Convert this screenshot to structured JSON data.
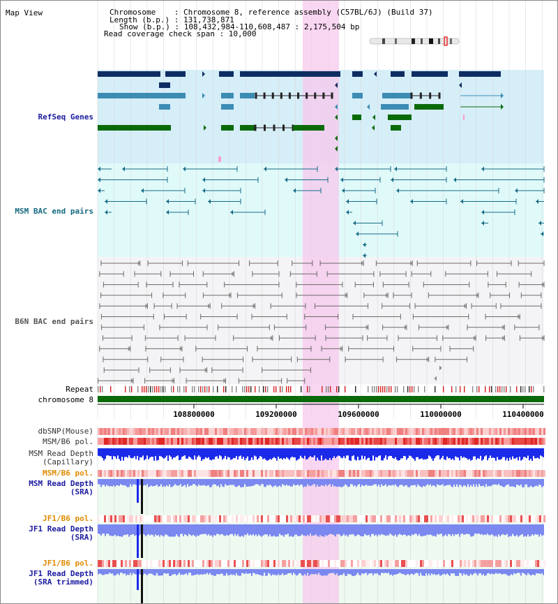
{
  "header": {
    "title": "Map View",
    "info_lines": [
      "Chromosome    : Chromosome 8, reference assembly (C57BL/6J) (Build 37)",
      "Length (b.p.) : 131,738,871",
      "Show (b.p.) : 108,432,984-110,608,487 : 2,175,504 bp",
      "Read coverage check span : 10,000"
    ]
  },
  "tracks": {
    "refseq": "RefSeq Genes",
    "msm_bac": "MSM BAC end pairs",
    "b6n_bac": "B6N BAC end pairs",
    "repeat": "Repeat",
    "chromosome": "chromosome 8",
    "dbsnp": "dbSNP(Mouse)",
    "msm_b6_pol_1": "MSM/B6 pol.",
    "msm_depth_cap_1": "MSM Read Depth",
    "msm_depth_cap_2": "(Capillary)",
    "msm_b6_pol_2": "MSM/B6 pol.",
    "msm_depth_sra_1": "MSM Read Depth",
    "msm_depth_sra_2": "(SRA)",
    "jf1_pol_1": "JF1/B6 pol.",
    "jf1_depth_sra_1": "JF1 Read Depth",
    "jf1_depth_sra_2": "(SRA)",
    "jf1_pol_2": "JF1/B6 pol.",
    "jf1_depth_trim_1": "JF1 Read Depth",
    "jf1_depth_trim_2": "(SRA trimmed)"
  },
  "axis": {
    "ticks": [
      "108800000",
      "109200000",
      "109600000",
      "110000000",
      "110400000"
    ]
  },
  "colors": {
    "refseq_band": "#d6eef8",
    "msm_bac_band": "#e0fafa",
    "b6n_bac_band": "#f4f4f6",
    "highlight": "#f8d0ee",
    "gene_dark": "#0e2e62",
    "gene_mid": "#3c8cb4",
    "gene_green": "#0a6a0a",
    "msm_bac": "#176a86",
    "b6n_bac": "#6a6a6a",
    "chromosome": "#0a6a0a",
    "depth": "#1a2ae8",
    "depth_light": "#7a88f0",
    "label_navy": "#1a1aa0",
    "label_teal": "#156a80",
    "label_orange": "#e08a00"
  }
}
